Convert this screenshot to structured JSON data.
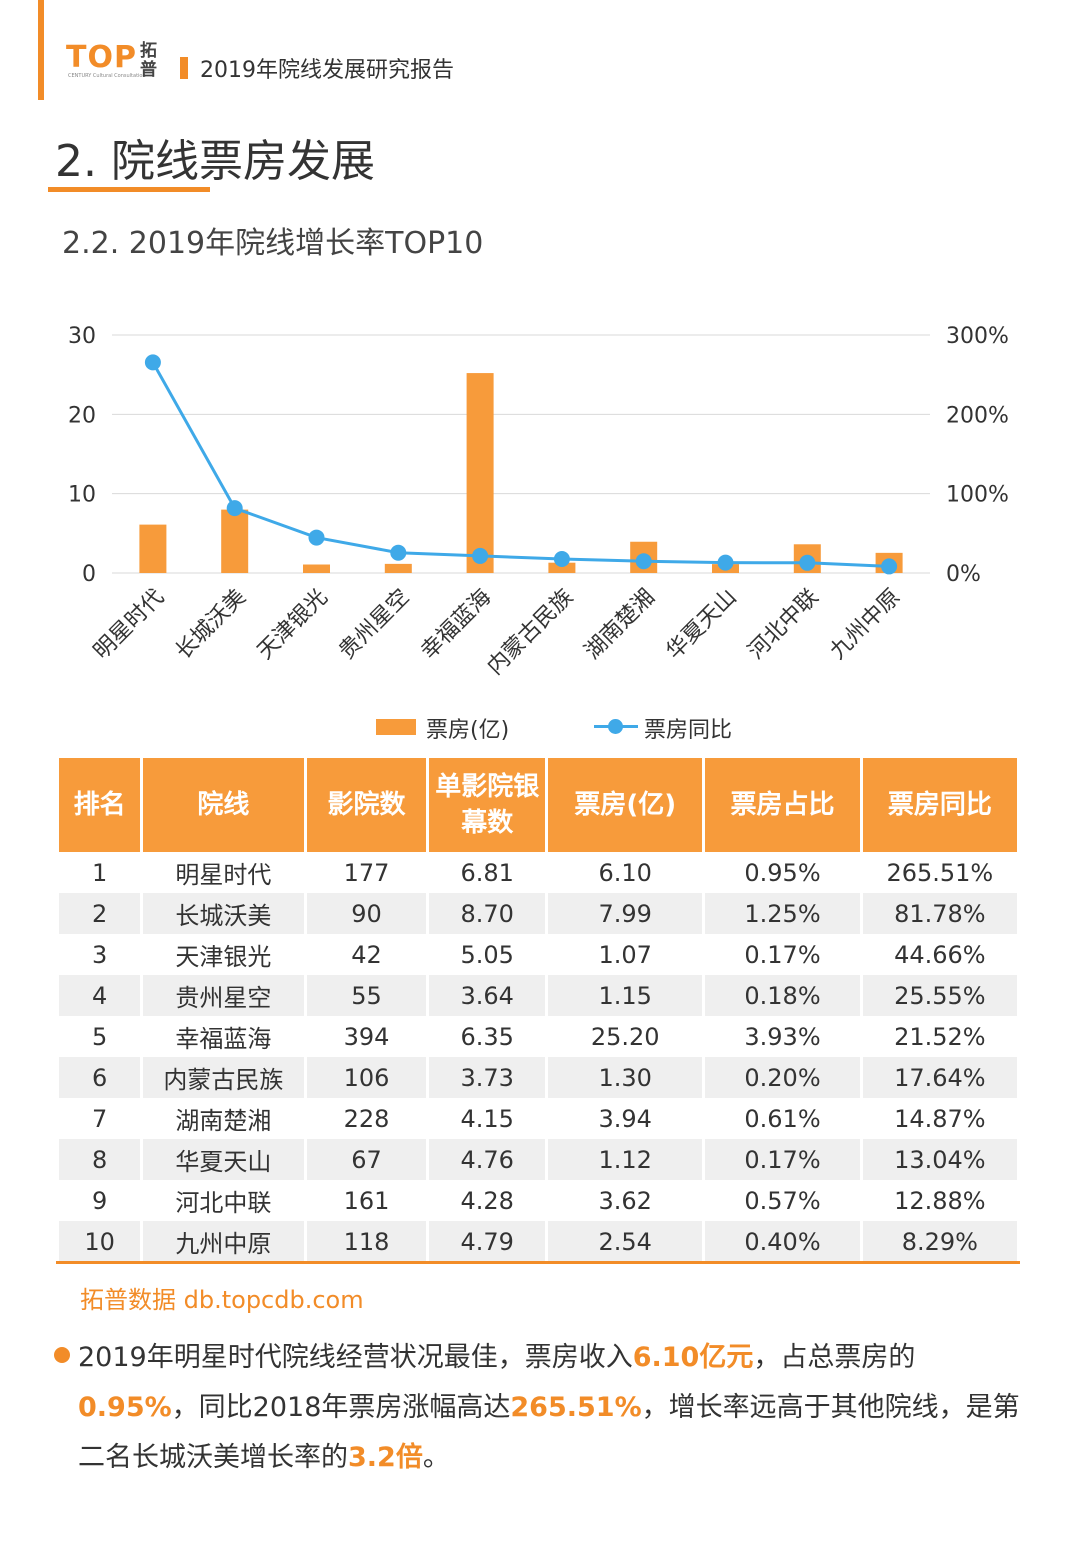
{
  "header": {
    "logo_text": "TOP",
    "logo_sub": "CENTURY Cultural Consultation",
    "logo_cn": "拓普",
    "report_title": "2019年院线发展研究报告"
  },
  "section_title": "2. 院线票房发展",
  "sub_title": "2.2.  2019年院线增长率TOP10",
  "colors": {
    "accent": "#f28c28",
    "bar": "#f79b3b",
    "line": "#3fa9e8"
  },
  "chart_data": {
    "type": "bar",
    "categories": [
      "明星时代",
      "长城沃美",
      "天津银光",
      "贵州星空",
      "幸福蓝海",
      "内蒙古民族",
      "湖南楚湘",
      "华夏天山",
      "河北中联",
      "九州中原"
    ],
    "series": [
      {
        "name": "票房(亿)",
        "type": "bar",
        "axis": "left",
        "values": [
          6.1,
          7.99,
          1.07,
          1.15,
          25.2,
          1.3,
          3.94,
          1.12,
          3.62,
          2.54
        ]
      },
      {
        "name": "票房同比",
        "type": "line",
        "axis": "right",
        "values": [
          265.51,
          81.78,
          44.66,
          25.55,
          21.52,
          17.64,
          14.87,
          13.04,
          12.88,
          8.29
        ]
      }
    ],
    "ylim_left": [
      0,
      30
    ],
    "yticks_left": [
      "0",
      "10",
      "20",
      "30"
    ],
    "ylim_right": [
      0,
      300
    ],
    "yticks_right": [
      "0%",
      "100%",
      "200%",
      "300%"
    ],
    "grid": true,
    "legend_position": "bottom"
  },
  "table": {
    "headers": [
      "排名",
      "院线",
      "影院数",
      "单影院银幕数",
      "票房(亿)",
      "票房占比",
      "票房同比"
    ],
    "rows": [
      [
        "1",
        "明星时代",
        "177",
        "6.81",
        "6.10",
        "0.95%",
        "265.51%"
      ],
      [
        "2",
        "长城沃美",
        "90",
        "8.70",
        "7.99",
        "1.25%",
        "81.78%"
      ],
      [
        "3",
        "天津银光",
        "42",
        "5.05",
        "1.07",
        "0.17%",
        "44.66%"
      ],
      [
        "4",
        "贵州星空",
        "55",
        "3.64",
        "1.15",
        "0.18%",
        "25.55%"
      ],
      [
        "5",
        "幸福蓝海",
        "394",
        "6.35",
        "25.20",
        "3.93%",
        "21.52%"
      ],
      [
        "6",
        "内蒙古民族",
        "106",
        "3.73",
        "1.30",
        "0.20%",
        "17.64%"
      ],
      [
        "7",
        "湖南楚湘",
        "228",
        "4.15",
        "3.94",
        "0.61%",
        "14.87%"
      ],
      [
        "8",
        "华夏天山",
        "67",
        "4.76",
        "1.12",
        "0.17%",
        "13.04%"
      ],
      [
        "9",
        "河北中联",
        "161",
        "4.28",
        "3.62",
        "0.57%",
        "12.88%"
      ],
      [
        "10",
        "九州中原",
        "118",
        "4.79",
        "2.54",
        "0.40%",
        "8.29%"
      ]
    ]
  },
  "source": "拓普数据  db.topcdb.com",
  "paragraph": [
    {
      "text": "2019年明星时代院线经营状况最佳，票房收入",
      "hl": false
    },
    {
      "text": "6.10亿元",
      "hl": true
    },
    {
      "text": "，占总票房的",
      "hl": false
    },
    {
      "text": "0.95%",
      "hl": true
    },
    {
      "text": "，同比2018年票房涨幅高达",
      "hl": false
    },
    {
      "text": "265.51%",
      "hl": true
    },
    {
      "text": "，增长率远高于其他院线，是第二名长城沃美增长率的",
      "hl": false
    },
    {
      "text": "3.2倍",
      "hl": true
    },
    {
      "text": "。",
      "hl": false
    }
  ]
}
